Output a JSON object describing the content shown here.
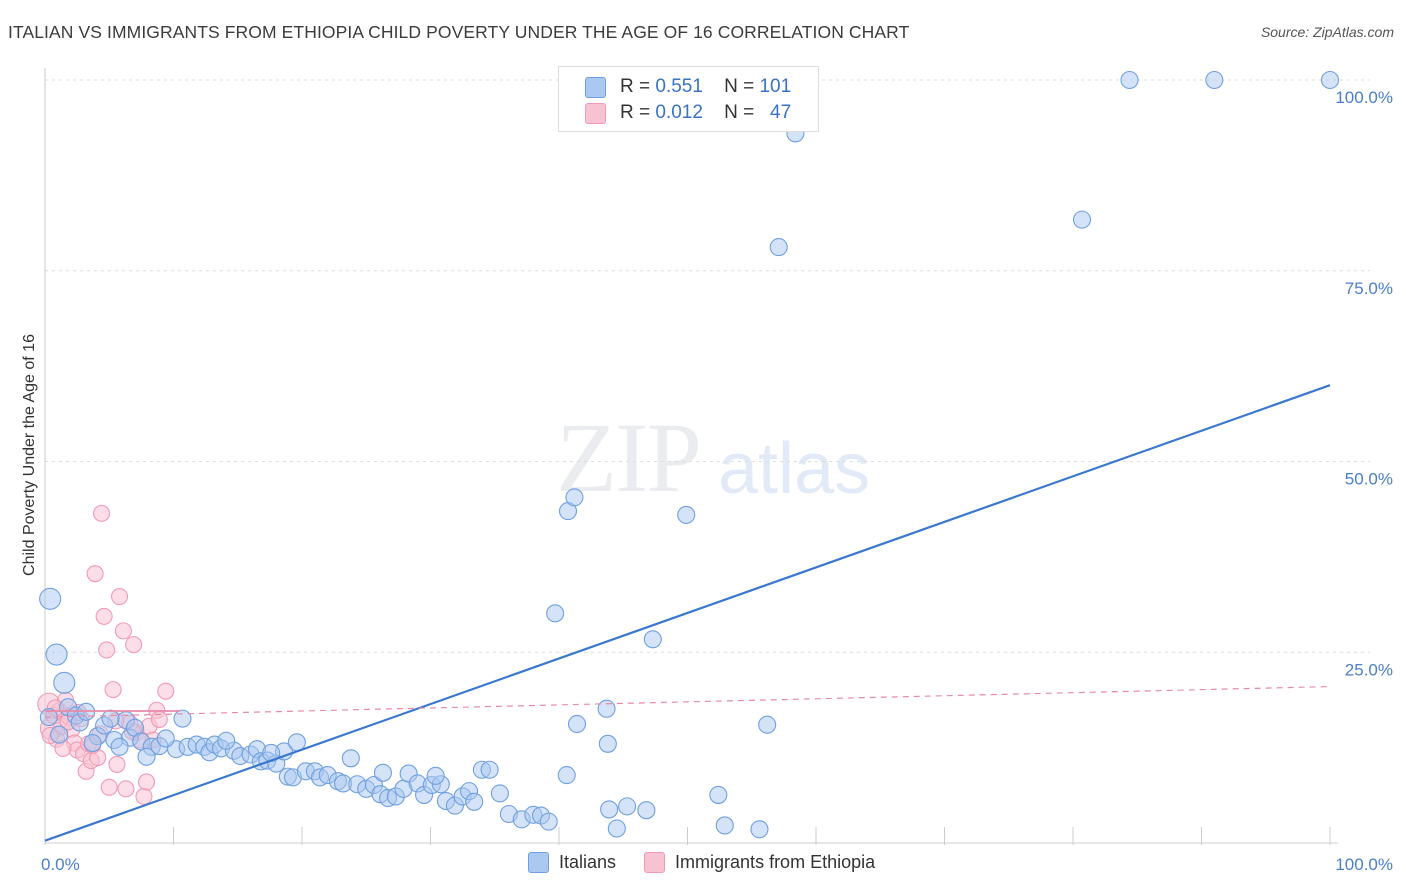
{
  "title": "ITALIAN VS IMMIGRANTS FROM ETHIOPIA CHILD POVERTY UNDER THE AGE OF 16 CORRELATION CHART",
  "source": "Source: ZipAtlas.com",
  "watermark": {
    "zip": "ZIP",
    "atlas": "atlas"
  },
  "legend": {
    "italians": {
      "r_label": "R =",
      "r_value": "0.551",
      "n_label": "N =",
      "n_value": "101"
    },
    "ethiopia": {
      "r_label": "R =",
      "r_value": "0.012",
      "n_label": "N =",
      "n_value": "47"
    }
  },
  "colors": {
    "italians": "#6fa0e0",
    "italians_fill": "#aac8f0",
    "ethiopia": "#f29ab5",
    "ethiopia_fill": "#f7c3d3",
    "trend_blue": "#3a78d0",
    "trend_pink": "#e88aa8",
    "grid": "#dcdcdc"
  },
  "chart_data": {
    "type": "scatter",
    "title": "ITALIAN VS IMMIGRANTS FROM ETHIOPIA CHILD POVERTY UNDER THE AGE OF 16 CORRELATION CHART",
    "xlabel": "",
    "ylabel": "Child Poverty Under the Age of 16",
    "xlim": [
      0,
      100
    ],
    "ylim": [
      0,
      100
    ],
    "x_tick_labels": [
      "0.0%",
      "100.0%"
    ],
    "y_tick_labels": [
      "25.0%",
      "50.0%",
      "75.0%",
      "100.0%"
    ],
    "y_ticks": [
      25,
      50,
      75,
      100
    ],
    "legend_labels": [
      "Italians",
      "Immigrants from Ethiopia"
    ],
    "series": [
      {
        "name": "Italians",
        "points": [
          [
            0.4,
            32
          ],
          [
            0.9,
            24.7
          ],
          [
            1.5,
            21
          ],
          [
            1.8,
            17.8
          ],
          [
            2.4,
            16.7
          ],
          [
            4.1,
            14
          ],
          [
            5.4,
            13.5
          ],
          [
            6.3,
            16.1
          ],
          [
            6.6,
            13.8
          ],
          [
            7.0,
            15.1
          ],
          [
            7.5,
            13.3
          ],
          [
            8.3,
            12.6
          ],
          [
            8.9,
            12.7
          ],
          [
            10.2,
            12.3
          ],
          [
            10.7,
            16.3
          ],
          [
            11.1,
            12.6
          ],
          [
            11.8,
            12.9
          ],
          [
            12.4,
            12.6
          ],
          [
            12.8,
            11.9
          ],
          [
            13.2,
            12.9
          ],
          [
            13.7,
            12.4
          ],
          [
            14.7,
            12.1
          ],
          [
            15.2,
            11.4
          ],
          [
            16.0,
            11.6
          ],
          [
            16.5,
            12.3
          ],
          [
            16.8,
            10.7
          ],
          [
            17.3,
            10.8
          ],
          [
            18.0,
            10.4
          ],
          [
            18.6,
            12
          ],
          [
            18.9,
            8.7
          ],
          [
            19.3,
            8.6
          ],
          [
            19.6,
            13.2
          ],
          [
            20.3,
            9.4
          ],
          [
            21.0,
            9.4
          ],
          [
            21.4,
            8.6
          ],
          [
            22.0,
            8.9
          ],
          [
            22.8,
            8.1
          ],
          [
            23.2,
            7.8
          ],
          [
            23.8,
            11.1
          ],
          [
            24.3,
            7.7
          ],
          [
            25.0,
            7.1
          ],
          [
            25.6,
            7.6
          ],
          [
            26.1,
            6.4
          ],
          [
            26.7,
            5.9
          ],
          [
            27.3,
            6.1
          ],
          [
            27.9,
            7.1
          ],
          [
            28.3,
            9.1
          ],
          [
            29.0,
            7.8
          ],
          [
            29.5,
            6.3
          ],
          [
            30.1,
            7.6
          ],
          [
            30.8,
            7.7
          ],
          [
            31.2,
            5.5
          ],
          [
            31.9,
            4.9
          ],
          [
            32.5,
            6.1
          ],
          [
            33.0,
            6.8
          ],
          [
            33.4,
            5.4
          ],
          [
            34.0,
            9.6
          ],
          [
            34.6,
            9.6
          ],
          [
            35.4,
            6.5
          ],
          [
            36.1,
            3.8
          ],
          [
            37.1,
            3.1
          ],
          [
            38.0,
            3.7
          ],
          [
            38.6,
            3.6
          ],
          [
            39.2,
            2.8
          ],
          [
            40.6,
            8.9
          ],
          [
            39.7,
            30.1
          ],
          [
            40.7,
            43.5
          ],
          [
            41.2,
            45.3
          ],
          [
            41.4,
            15.6
          ],
          [
            43.7,
            17.6
          ],
          [
            43.8,
            13
          ],
          [
            43.9,
            4.4
          ],
          [
            44.5,
            1.9
          ],
          [
            45.3,
            4.8
          ],
          [
            46.8,
            4.3
          ],
          [
            47.3,
            26.7
          ],
          [
            49.9,
            43
          ],
          [
            52.4,
            6.3
          ],
          [
            52.9,
            2.3
          ],
          [
            55.6,
            1.8
          ],
          [
            56.2,
            15.5
          ],
          [
            57.1,
            78.1
          ],
          [
            58.4,
            93
          ],
          [
            80.7,
            81.7
          ],
          [
            84.4,
            100
          ],
          [
            91.0,
            100
          ],
          [
            100,
            100
          ],
          [
            0.3,
            16.5
          ],
          [
            1.1,
            14.2
          ],
          [
            2.7,
            15.8
          ],
          [
            3.2,
            17.2
          ],
          [
            3.7,
            13.1
          ],
          [
            4.6,
            15.4
          ],
          [
            5.1,
            16.3
          ],
          [
            5.8,
            12.6
          ],
          [
            7.9,
            11.3
          ],
          [
            9.4,
            13.7
          ],
          [
            14.1,
            13.4
          ],
          [
            17.6,
            11.8
          ],
          [
            26.3,
            9.2
          ],
          [
            30.4,
            8.8
          ]
        ]
      },
      {
        "name": "Immigrants from Ethiopia",
        "points": [
          [
            0.3,
            18.2
          ],
          [
            0.5,
            15
          ],
          [
            0.7,
            16.7
          ],
          [
            0.9,
            13.6
          ],
          [
            1.1,
            17.3
          ],
          [
            1.3,
            15.3
          ],
          [
            1.6,
            18.7
          ],
          [
            1.9,
            16.5
          ],
          [
            2.1,
            14.9
          ],
          [
            2.3,
            13.1
          ],
          [
            2.5,
            12.2
          ],
          [
            2.8,
            16.3
          ],
          [
            3.0,
            11.7
          ],
          [
            3.2,
            9.4
          ],
          [
            3.4,
            13
          ],
          [
            3.6,
            10.8
          ],
          [
            3.9,
            35.3
          ],
          [
            4.1,
            11.2
          ],
          [
            4.4,
            43.2
          ],
          [
            4.6,
            29.7
          ],
          [
            4.8,
            25.3
          ],
          [
            5.0,
            7.3
          ],
          [
            5.3,
            20.1
          ],
          [
            5.6,
            10.3
          ],
          [
            5.8,
            32.3
          ],
          [
            6.1,
            27.8
          ],
          [
            6.3,
            7.1
          ],
          [
            6.6,
            15.7
          ],
          [
            6.9,
            26
          ],
          [
            7.1,
            14.5
          ],
          [
            7.4,
            13.5
          ],
          [
            7.7,
            6.1
          ],
          [
            7.9,
            8
          ],
          [
            8.1,
            15.3
          ],
          [
            8.4,
            13.5
          ],
          [
            8.7,
            17.4
          ],
          [
            9.4,
            19.9
          ],
          [
            0.4,
            14.1
          ],
          [
            0.8,
            17.7
          ],
          [
            1.4,
            12.4
          ],
          [
            1.8,
            15.9
          ],
          [
            2.6,
            17.1
          ],
          [
            3.7,
            12.8
          ],
          [
            4.3,
            14.3
          ],
          [
            5.5,
            16
          ],
          [
            6.8,
            14.6
          ],
          [
            8.9,
            16.2
          ]
        ]
      }
    ],
    "trendlines": [
      {
        "series": "Italians",
        "x": [
          0,
          100
        ],
        "y": [
          0.3,
          60
        ],
        "style": "solid"
      },
      {
        "series": "Immigrants from Ethiopia",
        "x": [
          0,
          100
        ],
        "y": [
          16.5,
          20.5
        ],
        "style": "dashed"
      }
    ]
  }
}
